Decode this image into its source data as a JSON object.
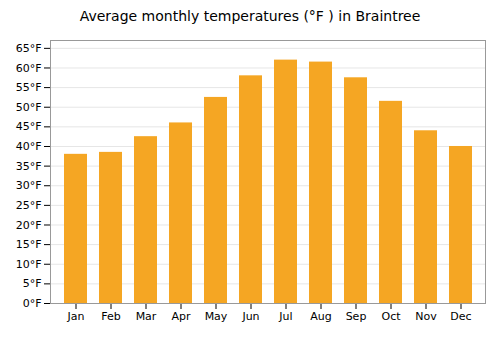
{
  "chart_data": {
    "type": "bar",
    "title": "Average monthly temperatures (°F ) in Braintree",
    "categories": [
      "Jan",
      "Feb",
      "Mar",
      "Apr",
      "May",
      "Jun",
      "Jul",
      "Aug",
      "Sep",
      "Oct",
      "Nov",
      "Dec"
    ],
    "values": [
      38,
      38.5,
      42.5,
      46,
      52.5,
      58,
      62,
      61.5,
      57.5,
      51.5,
      44,
      40
    ],
    "color": "#F5A623",
    "ylim": [
      0,
      67
    ],
    "yticks": [
      {
        "value": 0,
        "label": "0°F"
      },
      {
        "value": 5,
        "label": "5°F"
      },
      {
        "value": 10,
        "label": "10°F"
      },
      {
        "value": 15,
        "label": "15°F"
      },
      {
        "value": 20,
        "label": "20°F"
      },
      {
        "value": 25,
        "label": "25°F"
      },
      {
        "value": 30,
        "label": "30°F"
      },
      {
        "value": 35,
        "label": "35°F"
      },
      {
        "value": 40,
        "label": "40°F"
      },
      {
        "value": 45,
        "label": "45°F"
      },
      {
        "value": 50,
        "label": "50°F"
      },
      {
        "value": 55,
        "label": "55°F"
      },
      {
        "value": 60,
        "label": "60°F"
      },
      {
        "value": 65,
        "label": "65°F"
      }
    ],
    "grid": true
  }
}
